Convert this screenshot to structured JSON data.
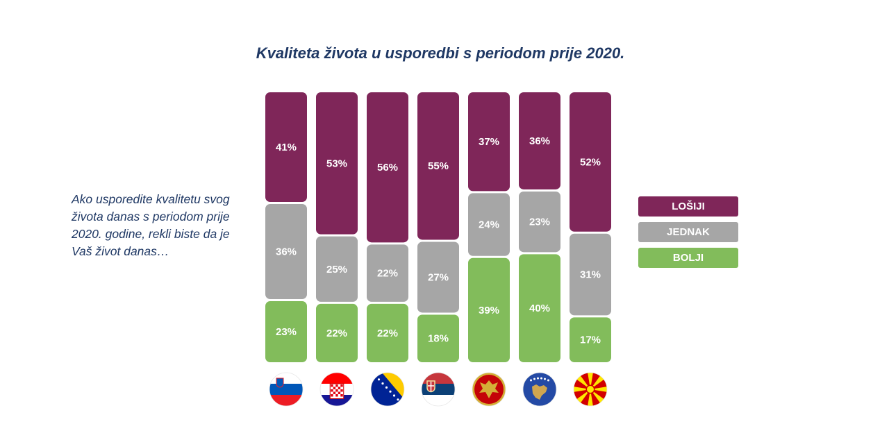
{
  "title": "Kvaliteta života u usporedbi s periodom prije 2020.",
  "question": "Ako usporedite kvalitetu svog života danas s periodom prije 2020. godine, rekli biste da je Vaš život danas…",
  "colors": {
    "losiji": "#7f2659",
    "jednak": "#a6a6a6",
    "bolji": "#82bc5b",
    "title": "#1f3864"
  },
  "legend": [
    {
      "label": "LOŠIJI",
      "color": "#7f2659"
    },
    {
      "label": "JEDNAK",
      "color": "#a6a6a6"
    },
    {
      "label": "BOLJI",
      "color": "#82bc5b"
    }
  ],
  "chart_data": {
    "type": "bar",
    "stacked": true,
    "orientation": "vertical-100-percent",
    "title": "Kvaliteta života u usporedbi s periodom prije 2020.",
    "categories": [
      "slovenia-flag",
      "croatia-flag",
      "bosnia-flag",
      "serbia-flag",
      "montenegro-flag",
      "kosovo-flag",
      "north-macedonia-flag"
    ],
    "series": [
      {
        "name": "LOŠIJI",
        "color": "#7f2659",
        "values": [
          41,
          53,
          56,
          55,
          37,
          36,
          52
        ]
      },
      {
        "name": "JEDNAK",
        "color": "#a6a6a6",
        "values": [
          36,
          25,
          22,
          27,
          24,
          23,
          31
        ]
      },
      {
        "name": "BOLJI",
        "color": "#82bc5b",
        "values": [
          23,
          22,
          22,
          18,
          39,
          40,
          17
        ]
      }
    ],
    "value_suffix": "%",
    "legend_position": "right"
  }
}
